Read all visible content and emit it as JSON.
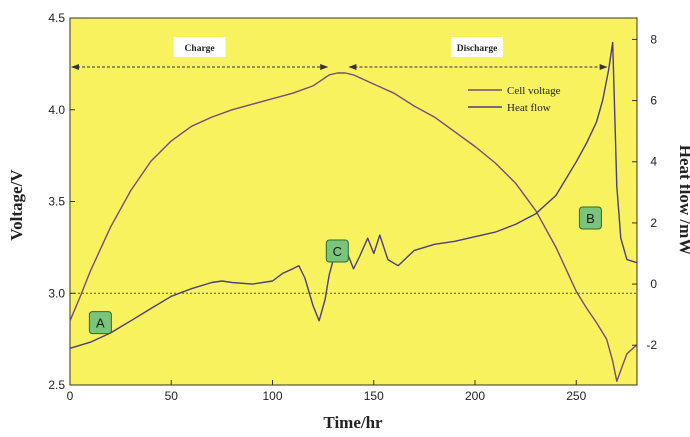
{
  "chart_data": {
    "type": "line",
    "xlabel": "Time/hr",
    "ylabel_left": "Voltage/V",
    "ylabel_right": "Heat flow /mW",
    "xlim": [
      0,
      280
    ],
    "ylim_left": [
      2.5,
      4.5
    ],
    "ylim_right": [
      -3.3,
      8.7
    ],
    "x_ticks": [
      "0",
      "50",
      "100",
      "150",
      "200",
      "250"
    ],
    "y_left_ticks": [
      "2.5",
      "3.0",
      "3.5",
      "4.0",
      "4.5"
    ],
    "y_right_ticks": [
      "-2",
      "0",
      "2",
      "4",
      "6",
      "8"
    ],
    "phases": [
      {
        "label": "Charge",
        "x_start": 0,
        "x_end": 128
      },
      {
        "label": "Discharge",
        "x_start": 137,
        "x_end": 266
      }
    ],
    "baseline": {
      "axis": "left",
      "y": 3.0,
      "style": "dotted"
    },
    "markers": [
      {
        "label": "A",
        "x": 15,
        "y": 2.84
      },
      {
        "label": "B",
        "x": 257,
        "y": 3.41
      },
      {
        "label": "C",
        "x": 132,
        "y": 3.23
      }
    ],
    "legend": {
      "position": "top-right",
      "entries": [
        "Cell voltage",
        "Heat flow"
      ]
    },
    "series": [
      {
        "name": "Cell voltage",
        "axis": "left",
        "color": "#7a4a7a",
        "x": [
          0,
          5,
          10,
          20,
          30,
          40,
          50,
          60,
          70,
          80,
          90,
          100,
          110,
          120,
          128,
          132,
          136,
          140,
          150,
          160,
          170,
          180,
          190,
          200,
          210,
          220,
          230,
          240,
          250,
          255,
          260,
          265,
          268,
          270,
          272,
          275,
          280
        ],
        "y": [
          2.85,
          2.98,
          3.12,
          3.36,
          3.56,
          3.72,
          3.83,
          3.91,
          3.96,
          4.0,
          4.03,
          4.06,
          4.09,
          4.13,
          4.19,
          4.2,
          4.2,
          4.19,
          4.14,
          4.09,
          4.02,
          3.96,
          3.88,
          3.8,
          3.71,
          3.6,
          3.45,
          3.25,
          3.01,
          2.92,
          2.84,
          2.75,
          2.63,
          2.52,
          2.58,
          2.67,
          2.72
        ]
      },
      {
        "name": "Heat flow",
        "axis": "right",
        "color": "#4b3f7c",
        "x": [
          0,
          10,
          20,
          30,
          40,
          50,
          60,
          70,
          75,
          80,
          90,
          100,
          105,
          110,
          113,
          116,
          120,
          123,
          126,
          128,
          130,
          135,
          137,
          140,
          143,
          147,
          150,
          153,
          157,
          162,
          170,
          180,
          190,
          200,
          210,
          220,
          230,
          240,
          250,
          255,
          260,
          263,
          266,
          268,
          270,
          272,
          275,
          280
        ],
        "y": [
          -2.1,
          -1.9,
          -1.6,
          -1.2,
          -0.8,
          -0.4,
          -0.15,
          0.05,
          0.1,
          0.05,
          0.0,
          0.1,
          0.35,
          0.5,
          0.6,
          0.2,
          -0.7,
          -1.2,
          -0.5,
          0.3,
          0.8,
          1.2,
          1.0,
          0.5,
          0.9,
          1.5,
          1.0,
          1.6,
          0.8,
          0.6,
          1.1,
          1.3,
          1.4,
          1.55,
          1.7,
          1.95,
          2.3,
          2.9,
          4.0,
          4.6,
          5.3,
          6.0,
          7.0,
          7.9,
          3.2,
          1.5,
          0.8,
          0.7
        ]
      }
    ]
  }
}
